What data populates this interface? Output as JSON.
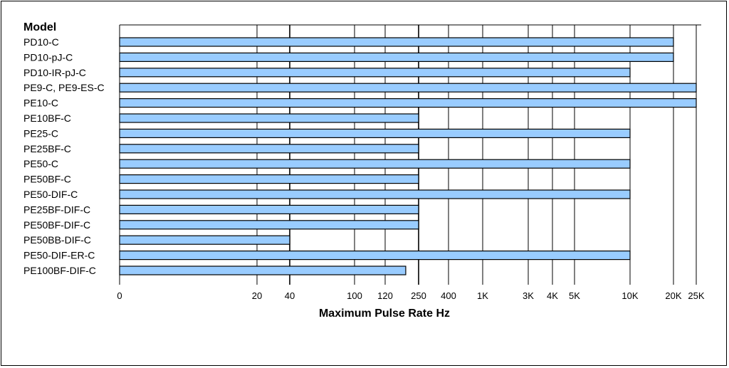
{
  "chart_data": {
    "type": "bar",
    "orientation": "horizontal",
    "axis_scale": "custom-nonlinear",
    "category_header": "Model",
    "xlabel": "Maximum Pulse Rate Hz",
    "ylabel": "",
    "title": "",
    "grid": true,
    "bar_color": "#99ccff",
    "bar_outline": "#000000",
    "ticks": [
      {
        "label": "0",
        "value": 0
      },
      {
        "label": "20",
        "value": 20
      },
      {
        "label": "40",
        "value": 40
      },
      {
        "label": "100",
        "value": 100
      },
      {
        "label": "120",
        "value": 120
      },
      {
        "label": "250",
        "value": 250
      },
      {
        "label": "400",
        "value": 400
      },
      {
        "label": "1K",
        "value": 1000
      },
      {
        "label": "3K",
        "value": 3000
      },
      {
        "label": "4K",
        "value": 4000
      },
      {
        "label": "5K",
        "value": 5000
      },
      {
        "label": "10K",
        "value": 10000
      },
      {
        "label": "20K",
        "value": 20000
      },
      {
        "label": "25K",
        "value": 25000
      }
    ],
    "categories": [
      "PD10-C",
      "PD10-pJ-C",
      "PD10-IR-pJ-C",
      "PE9-C, PE9-ES-C",
      "PE10-C",
      "PE10BF-C",
      "PE25-C",
      "PE25BF-C",
      "PE50-C",
      "PE50BF-C",
      "PE50-DIF-C",
      "PE25BF-DIF-C",
      "PE50BF-DIF-C",
      "PE50BB-DIF-C",
      "PE50-DIF-ER-C",
      "PE100BF-DIF-C"
    ],
    "values": [
      20000,
      20000,
      10000,
      25000,
      25000,
      250,
      10000,
      250,
      10000,
      250,
      10000,
      250,
      250,
      40,
      10000,
      200
    ]
  }
}
